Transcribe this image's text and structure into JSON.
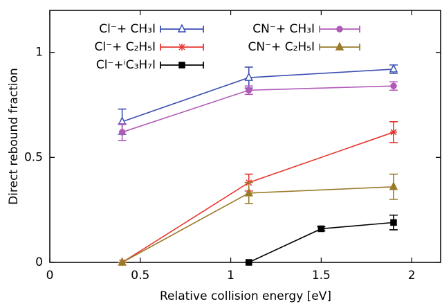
{
  "chart_data": {
    "type": "line",
    "x_label": "Relative collision energy [eV]",
    "y_label": "Direct rebound fraction",
    "xlim": [
      0,
      2.16
    ],
    "ylim": [
      0,
      1.2
    ],
    "xticks": [
      0,
      0.5,
      1,
      1.5,
      2
    ],
    "yticks": [
      0,
      0.5,
      1
    ],
    "series": [
      {
        "name": "Cl⁻+ CH₃I",
        "color": "#3a4fb0",
        "marker": "triangle-open",
        "x": [
          0.4,
          1.1,
          1.9
        ],
        "values": [
          0.67,
          0.88,
          0.92
        ],
        "errors": [
          0.06,
          0.05,
          0.02
        ]
      },
      {
        "name": "Cl⁻+ C₂H₅I",
        "color": "#e8352e",
        "marker": "x",
        "x": [
          0.4,
          1.1,
          1.9
        ],
        "values": [
          0,
          0.38,
          0.62
        ],
        "errors": [
          0,
          0.04,
          0.05
        ]
      },
      {
        "name": "Cl⁻+ⁱC₃H₇I",
        "color": "#000000",
        "marker": "square",
        "x": [
          1.1,
          1.5,
          1.9
        ],
        "values": [
          0,
          0.16,
          0.19
        ],
        "errors": [
          0,
          0.01,
          0.035
        ]
      },
      {
        "name": "CN⁻+ CH₃I",
        "color": "#b05ab8",
        "marker": "circle",
        "x": [
          0.4,
          1.1,
          1.9
        ],
        "values": [
          0.62,
          0.82,
          0.84
        ],
        "errors": [
          0.04,
          0.02,
          0.02
        ]
      },
      {
        "name": "CN⁻+ C₂H₅I",
        "color": "#9a7b2a",
        "marker": "triangle",
        "x": [
          0.4,
          1.1,
          1.9
        ],
        "values": [
          0,
          0.33,
          0.36
        ],
        "errors": [
          0,
          0.05,
          0.06
        ]
      }
    ]
  }
}
